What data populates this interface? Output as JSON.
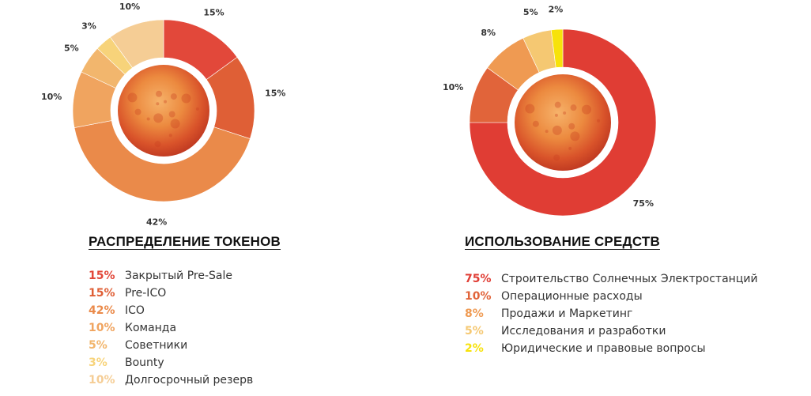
{
  "chart_data": [
    {
      "type": "pie",
      "title": "РАСПРЕДЕЛЕНИЕ ТОКЕНОВ",
      "slices": [
        {
          "name": "Закрытый Pre-Sale",
          "value": 15,
          "label": "15%",
          "color": "#e2483a"
        },
        {
          "name": "Pre-ICO",
          "value": 15,
          "label": "15%",
          "color": "#df5f36"
        },
        {
          "name": "ICO",
          "value": 42,
          "label": "42%",
          "color": "#ea8a4a"
        },
        {
          "name": "Команда",
          "value": 10,
          "label": "10%",
          "color": "#f0a45f"
        },
        {
          "name": "Советники",
          "value": 5,
          "label": "5%",
          "color": "#f2b66d"
        },
        {
          "name": "Bounty",
          "value": 3,
          "label": "3%",
          "color": "#f7d37a"
        },
        {
          "name": "Долгосрочный резерв",
          "value": 10,
          "label": "10%",
          "color": "#f5cd95"
        }
      ]
    },
    {
      "type": "pie",
      "title": "ИСПОЛЬЗОВАНИЕ СРЕДСТВ",
      "slices": [
        {
          "name": "Строительство Солнечных Электростанций",
          "value": 75,
          "label": "75%",
          "color": "#e03d34"
        },
        {
          "name": "Операционные расходы",
          "value": 10,
          "label": "10%",
          "color": "#e1643a"
        },
        {
          "name": "Продажи и Маркетинг",
          "value": 8,
          "label": "8%",
          "color": "#ef9a52"
        },
        {
          "name": "Исследования и разработки",
          "value": 5,
          "label": "5%",
          "color": "#f5c872"
        },
        {
          "name": "Юридические и правовые вопросы",
          "value": 2,
          "label": "2%",
          "color": "#f7e20a"
        }
      ]
    }
  ]
}
